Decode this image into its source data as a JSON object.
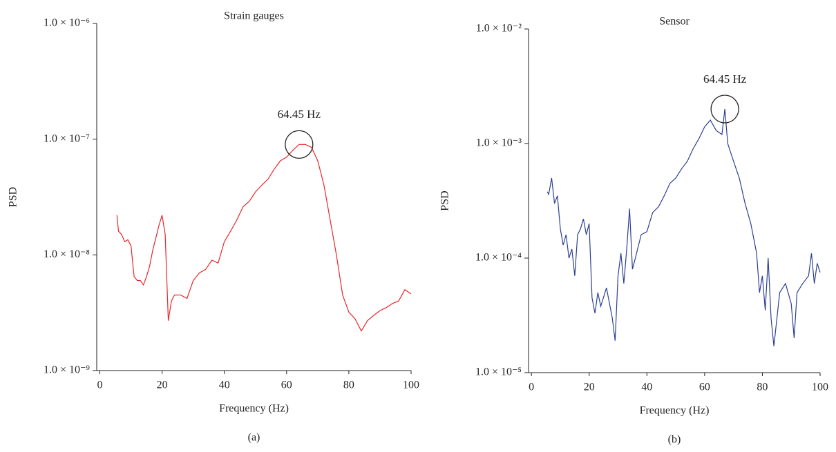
{
  "chart_data": [
    {
      "type": "line",
      "title": "Strain gauges",
      "xlabel": "Frequency (Hz)",
      "ylabel": "PSD",
      "caption": "(a)",
      "annotation": "64.45 Hz",
      "log_y": true,
      "xlim": [
        -1,
        100
      ],
      "ylim": [
        1e-09,
        1e-06
      ],
      "xticks": [
        0,
        20,
        40,
        60,
        80,
        100
      ],
      "yticks": [
        {
          "value": 1e-09,
          "label": "1.0 × 10⁻⁹"
        },
        {
          "value": 1e-08,
          "label": "1.0 × 10⁻⁸"
        },
        {
          "value": 1e-07,
          "label": "1.0 × 10⁻⁷"
        },
        {
          "value": 1e-06,
          "label": "1.0 × 10⁻⁶"
        }
      ],
      "series": [
        {
          "color": "#e8262a",
          "x": [
            5.5,
            6,
            7,
            8,
            9,
            10,
            11,
            12,
            13,
            14,
            15,
            16,
            17,
            18,
            19,
            20,
            21,
            22,
            23,
            24,
            26,
            28,
            30,
            32,
            34,
            36,
            38,
            40,
            42,
            44,
            46,
            48,
            50,
            52,
            54,
            56,
            58,
            60,
            62,
            64,
            66,
            68,
            70,
            72,
            74,
            76,
            78,
            80,
            82,
            84,
            86,
            88,
            90,
            92,
            94,
            96,
            98,
            100
          ],
          "values": [
            2.2e-08,
            1.6e-08,
            1.5e-08,
            1.3e-08,
            1.35e-08,
            1.2e-08,
            6.5e-09,
            6e-09,
            6e-09,
            5.5e-09,
            6.5e-09,
            8e-09,
            1.1e-08,
            1.4e-08,
            1.8e-08,
            2.2e-08,
            1.5e-08,
            2.7e-09,
            4e-09,
            4.5e-09,
            4.5e-09,
            4.2e-09,
            6e-09,
            7e-09,
            7.5e-09,
            9e-09,
            8.5e-09,
            1.3e-08,
            1.6e-08,
            2e-08,
            2.6e-08,
            2.9e-08,
            3.5e-08,
            4e-08,
            4.5e-08,
            5.5e-08,
            6.5e-08,
            7e-08,
            8e-08,
            9e-08,
            9e-08,
            8.5e-08,
            6.5e-08,
            4e-08,
            2e-08,
            1e-08,
            4.5e-09,
            3.2e-09,
            2.8e-09,
            2.2e-09,
            2.7e-09,
            3e-09,
            3.3e-09,
            3.5e-09,
            3.8e-09,
            4e-09,
            5e-09,
            4.6e-09
          ]
        }
      ]
    },
    {
      "type": "line",
      "title": "Sensor",
      "xlabel": "Frequency (Hz)",
      "ylabel": "PSD",
      "caption": "(b)",
      "annotation": "64.45 Hz",
      "log_y": true,
      "xlim": [
        -1,
        100
      ],
      "ylim": [
        1e-05,
        0.01
      ],
      "xticks": [
        0,
        20,
        40,
        60,
        80,
        100
      ],
      "yticks": [
        {
          "value": 1e-05,
          "label": "1.0 × 10⁻⁵"
        },
        {
          "value": 0.0001,
          "label": "1.0 × 10⁻⁴"
        },
        {
          "value": 0.001,
          "label": "1.0 × 10⁻³"
        },
        {
          "value": 0.01,
          "label": "1.0 × 10⁻²"
        }
      ],
      "series": [
        {
          "color": "#2b3f93",
          "x": [
            5.5,
            6,
            7,
            8,
            9,
            10,
            11,
            12,
            13,
            14,
            15,
            16,
            17,
            18,
            19,
            20,
            21,
            22,
            23,
            24,
            26,
            28,
            29,
            30,
            31,
            32,
            33,
            34,
            35,
            36,
            38,
            40,
            42,
            44,
            46,
            48,
            50,
            52,
            54,
            56,
            58,
            60,
            62,
            64,
            66,
            67,
            68,
            70,
            72,
            74,
            76,
            78,
            79,
            80,
            81,
            82,
            83,
            84,
            86,
            88,
            90,
            91,
            92,
            94,
            96,
            97,
            98,
            99,
            100
          ],
          "values": [
            0.00038,
            0.00036,
            0.0005,
            0.0003,
            0.00035,
            0.00018,
            0.00013,
            0.00016,
            0.0001,
            0.00012,
            7e-05,
            0.00016,
            0.00018,
            0.00022,
            0.00016,
            0.0002,
            4.5e-05,
            3.3e-05,
            5e-05,
            3.8e-05,
            5.5e-05,
            3e-05,
            1.9e-05,
            7e-05,
            0.00011,
            6e-05,
            0.00012,
            0.00027,
            8e-05,
            0.0001,
            0.00016,
            0.00017,
            0.00025,
            0.00028,
            0.00035,
            0.00045,
            0.0005,
            0.0006,
            0.0007,
            0.0009,
            0.0011,
            0.0014,
            0.0016,
            0.0013,
            0.0012,
            0.002,
            0.001,
            0.0007,
            0.0005,
            0.0003,
            0.0002,
            0.00011,
            5e-05,
            7e-05,
            3.5e-05,
            0.0001,
            3e-05,
            1.7e-05,
            5e-05,
            6e-05,
            4e-05,
            2e-05,
            5e-05,
            6e-05,
            7e-05,
            0.00011,
            6e-05,
            9e-05,
            7.5e-05
          ]
        }
      ]
    }
  ]
}
